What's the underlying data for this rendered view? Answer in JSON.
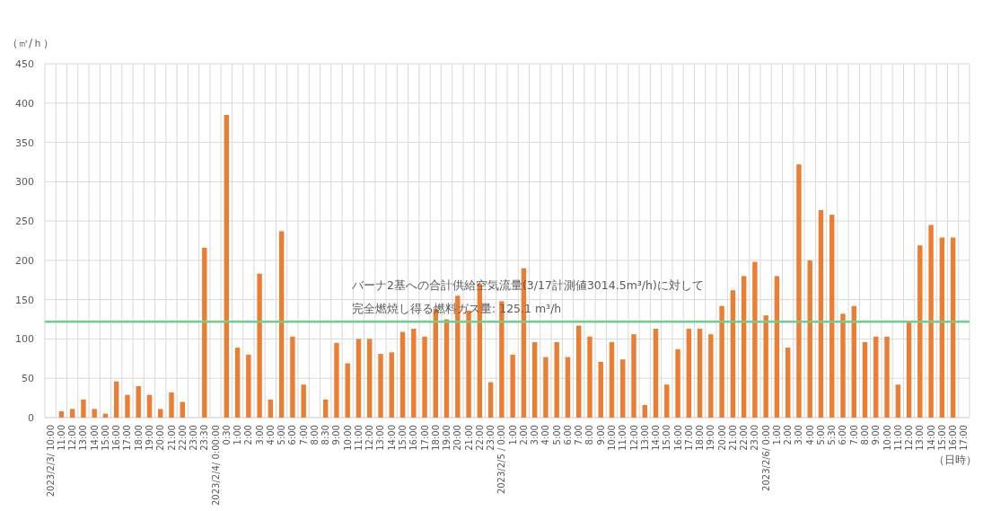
{
  "chart_data": {
    "type": "bar",
    "ylabel": "（㎥/ｈ）",
    "xlabel": "（日時）",
    "categories": [
      "2023/2/3/ 10:00",
      "11:00",
      "12:00",
      "13:00",
      "14:00",
      "15:00",
      "16:00",
      "17:00",
      "18:00",
      "19:00",
      "20:00",
      "21:00",
      "22:00",
      "23:00",
      "23:30",
      "2023/2/4/ 0:00:00",
      "0:30",
      "1:00",
      "2:00",
      "3:00",
      "4:00",
      "5:00",
      "6:00",
      "7:00",
      "8:00",
      "8:30",
      "9:00",
      "10:00",
      "11:00",
      "12:00",
      "13:00",
      "14:00",
      "15:00",
      "16:00",
      "17:00",
      "18:00",
      "19:00",
      "20:00",
      "21:00",
      "22:00",
      "23:00",
      "2023/2/5 / 0:00",
      "1:00",
      "2:00",
      "3:00",
      "4:00",
      "5:00",
      "6:00",
      "7:00",
      "8:00",
      "9:00",
      "10:00",
      "11:00",
      "12:00",
      "13:00",
      "14:00",
      "15:00",
      "16:00",
      "17:00",
      "18:00",
      "19:00",
      "20:00",
      "21:00",
      "22:00",
      "23:00",
      "2023/2/6/ 0:00",
      "1:00",
      "2:00",
      "3:00",
      "4:00",
      "5:00",
      "5:30",
      "6:00",
      "7:00",
      "8:00",
      "9:00",
      "10:00",
      "11:00",
      "12:00",
      "13:00",
      "14:00",
      "15:00",
      "16:00",
      "17:00"
    ],
    "values": [
      null,
      8,
      11,
      23,
      11,
      5,
      46,
      29,
      40,
      29,
      11,
      32,
      20,
      null,
      216,
      null,
      385,
      89,
      80,
      183,
      23,
      237,
      103,
      42,
      null,
      23,
      95,
      69,
      100,
      100,
      81,
      83,
      109,
      113,
      103,
      138,
      125,
      155,
      136,
      170,
      45,
      148,
      80,
      190,
      96,
      77,
      96,
      77,
      117,
      103,
      71,
      96,
      74,
      106,
      16,
      113,
      42,
      87,
      113,
      113,
      106,
      142,
      162,
      180,
      198,
      130,
      180,
      89,
      322,
      200,
      264,
      258,
      132,
      142,
      96,
      103,
      103,
      42,
      122,
      219,
      245,
      229,
      229,
      null
    ],
    "color": "#ed7d31",
    "ylim": [
      0,
      450
    ],
    "yticks": [
      0,
      50,
      100,
      150,
      200,
      250,
      300,
      350,
      400,
      450
    ],
    "grid": true,
    "ref_lines": [
      {
        "axis": "y",
        "value": 122,
        "color": "#6fcf8f"
      }
    ],
    "annotations": [
      "バーナ2基への合計供給空気流量(3/17計測値3014.5m³/h)に対して",
      "完全燃焼し得る燃料ガス量: 125.1 m³/h"
    ]
  }
}
